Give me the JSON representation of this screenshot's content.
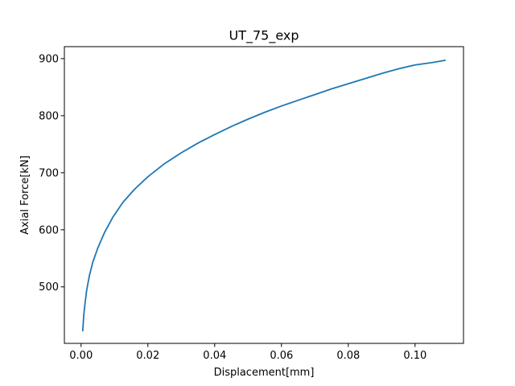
{
  "chart_data": {
    "type": "line",
    "title": "UT_75_exp",
    "xlabel": "Displacement[mm]",
    "ylabel": "Axial Force[kN]",
    "xlim": [
      -0.005,
      0.1145
    ],
    "ylim": [
      401,
      921
    ],
    "xticks": [
      0.0,
      0.02,
      0.04,
      0.06,
      0.08,
      0.1
    ],
    "xtick_labels": [
      "0.00",
      "0.02",
      "0.04",
      "0.06",
      "0.08",
      "0.10"
    ],
    "yticks": [
      500,
      600,
      700,
      800,
      900
    ],
    "ytick_labels": [
      "500",
      "600",
      "700",
      "800",
      "900"
    ],
    "grid": false,
    "series": [
      {
        "color": "#1f77b4",
        "x": [
          0.0005,
          0.0008,
          0.0012,
          0.0017,
          0.0025,
          0.0035,
          0.005,
          0.007,
          0.0095,
          0.0125,
          0.016,
          0.02,
          0.025,
          0.03,
          0.035,
          0.04,
          0.045,
          0.05,
          0.055,
          0.06,
          0.065,
          0.07,
          0.075,
          0.08,
          0.085,
          0.09,
          0.095,
          0.1,
          0.105,
          0.109
        ],
        "y": [
          423,
          450,
          472,
          495,
          520,
          543,
          568,
          595,
          622,
          648,
          671,
          693,
          716,
          735,
          752,
          767,
          781,
          794,
          806,
          817,
          827,
          837,
          847,
          856,
          865,
          874,
          882,
          889,
          893,
          897
        ]
      }
    ]
  }
}
